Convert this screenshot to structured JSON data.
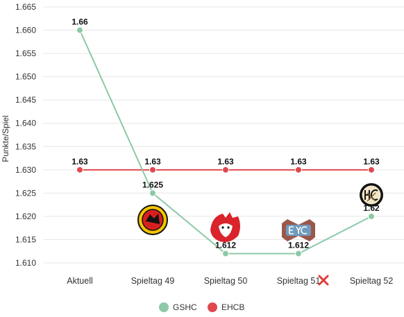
{
  "chart_data": {
    "type": "line",
    "title": "",
    "xlabel": "",
    "ylabel": "Punkte/Spiel",
    "categories": [
      "Aktuell",
      "Spieltag 49",
      "Spieltag 50",
      "Spieltag 51",
      "Spieltag 52"
    ],
    "ylim": [
      1.61,
      1.665
    ],
    "yticks": [
      "1.610",
      "1.615",
      "1.620",
      "1.625",
      "1.630",
      "1.635",
      "1.640",
      "1.645",
      "1.650",
      "1.655",
      "1.660",
      "1.665"
    ],
    "grid": true,
    "legend": "bottom",
    "series": [
      {
        "name": "GSHC",
        "color": "#8cc9a6",
        "values": [
          1.66,
          1.625,
          1.612,
          1.612,
          1.62
        ],
        "labels": [
          "1.66",
          "1.625",
          "1.612",
          "1.612",
          "1.62"
        ]
      },
      {
        "name": "EHCB",
        "color": "#e0484e",
        "values": [
          1.63,
          1.63,
          1.63,
          1.63,
          1.63
        ],
        "labels": [
          "1.63",
          "1.63",
          "1.63",
          "1.63",
          "1.63"
        ]
      }
    ],
    "annotations": [
      {
        "category": "Spieltag 49",
        "icon": "opponent-logo-red-yellow-crest-icon"
      },
      {
        "category": "Spieltag 50",
        "icon": "opponent-logo-lion-head-icon"
      },
      {
        "category": "Spieltag 51",
        "icon": "opponent-logo-ehc-icon"
      },
      {
        "category": "Spieltag 51",
        "icon": "red-x-icon",
        "color": "#e53935"
      },
      {
        "category": "Spieltag 52",
        "icon": "opponent-logo-hc-icon"
      }
    ]
  }
}
